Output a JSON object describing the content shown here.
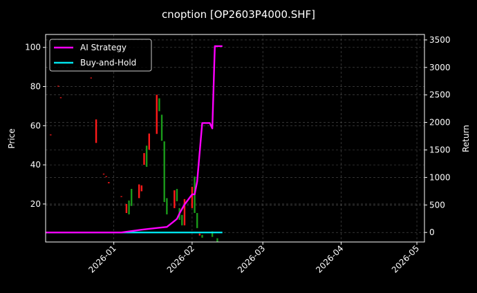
{
  "chart_data": {
    "type": "line",
    "title": "cnoption [OP2603P4000.SHF]",
    "ylabel": "Price",
    "y2label": "Return",
    "xlim": [
      "2025-12-05",
      "2026-05-04"
    ],
    "ylim": [
      0.6,
      106.6
    ],
    "y2lim": [
      -173,
      3599
    ],
    "grid": true,
    "legend_placement": "top-left",
    "x_ticks": [
      "2026-01",
      "2026-02",
      "2026-03",
      "2026-04",
      "2026-05"
    ],
    "x_tick_dates": [
      "2026-01-01",
      "2026-02-01",
      "2026-03-01",
      "2026-04-01",
      "2026-05-01"
    ],
    "y_ticks": [
      20,
      40,
      60,
      80,
      100
    ],
    "y2_ticks": [
      0,
      500,
      1000,
      1500,
      2000,
      2500,
      3000,
      3500
    ],
    "colors": {
      "up": "#ff1a1a",
      "down": "#1a9a1a",
      "ai": "#ff00ff",
      "bh": "#00e5ee",
      "background": "#000000",
      "grid": "#555555"
    },
    "candles": [
      {
        "date": "2025-12-07",
        "open": 55.3,
        "close": 55.5
      },
      {
        "date": "2025-12-10",
        "open": 80.2,
        "close": 80.4
      },
      {
        "date": "2025-12-11",
        "open": 74.3,
        "close": 74.5
      },
      {
        "date": "2025-12-23",
        "open": 84.4,
        "close": 84.6
      },
      {
        "date": "2025-12-25",
        "open": 51.2,
        "close": 63.2
      },
      {
        "date": "2025-12-28",
        "open": 35.2,
        "close": 35.5
      },
      {
        "date": "2025-12-29",
        "open": 33.8,
        "close": 34.2
      },
      {
        "date": "2025-12-30",
        "open": 30.6,
        "close": 31.2
      },
      {
        "date": "2026-01-04",
        "open": 23.8,
        "close": 24.0
      },
      {
        "date": "2026-01-06",
        "open": 15.4,
        "close": 20.0
      },
      {
        "date": "2026-01-07",
        "open": 21.8,
        "close": 14.7
      },
      {
        "date": "2026-01-08",
        "open": 27.7,
        "close": 19.0
      },
      {
        "date": "2026-01-11",
        "open": 23.0,
        "close": 30.0
      },
      {
        "date": "2026-01-12",
        "open": 26.5,
        "close": 29.5
      },
      {
        "date": "2026-01-13",
        "open": 40.0,
        "close": 46.0
      },
      {
        "date": "2026-01-14",
        "open": 49.8,
        "close": 39.0
      },
      {
        "date": "2026-01-15",
        "open": 47.7,
        "close": 56.0
      },
      {
        "date": "2026-01-18",
        "open": 55.8,
        "close": 75.8
      },
      {
        "date": "2026-01-19",
        "open": 74.0,
        "close": 67.4
      },
      {
        "date": "2026-01-20",
        "open": 65.6,
        "close": 52.3
      },
      {
        "date": "2026-01-21",
        "open": 52.0,
        "close": 21.0
      },
      {
        "date": "2026-01-22",
        "open": 23.0,
        "close": 14.7
      },
      {
        "date": "2026-01-25",
        "open": 17.9,
        "close": 27.0
      },
      {
        "date": "2026-01-26",
        "open": 27.7,
        "close": 21.4
      },
      {
        "date": "2026-01-27",
        "open": 17.9,
        "close": 11.9
      },
      {
        "date": "2026-01-28",
        "open": 14.4,
        "close": 9.1
      },
      {
        "date": "2026-01-29",
        "open": 9.1,
        "close": 22.5
      },
      {
        "date": "2026-02-01",
        "open": 17.9,
        "close": 28.8
      },
      {
        "date": "2026-02-02",
        "open": 34.0,
        "close": 15.4
      },
      {
        "date": "2026-02-03",
        "open": 15.4,
        "close": 7.7
      },
      {
        "date": "2026-02-04",
        "open": 3.9,
        "close": 4.9
      },
      {
        "date": "2026-02-05",
        "open": 4.2,
        "close": 2.8
      },
      {
        "date": "2026-02-09",
        "open": 6.0,
        "close": 3.2
      },
      {
        "date": "2026-02-11",
        "open": 2.5,
        "close": 0.7
      }
    ],
    "series": [
      {
        "name": "AI Strategy",
        "axis": "right",
        "x": [
          "2025-12-05",
          "2026-01-04",
          "2026-01-12",
          "2026-01-19",
          "2026-01-22",
          "2026-01-24",
          "2026-01-26",
          "2026-01-27",
          "2026-01-29",
          "2026-02-01",
          "2026-02-02",
          "2026-02-03",
          "2026-02-04",
          "2026-02-05",
          "2026-02-08",
          "2026-02-09",
          "2026-02-10",
          "2026-02-13"
        ],
        "y": [
          0,
          0,
          50,
          86,
          100,
          173,
          247,
          346,
          507,
          692,
          692,
          927,
          1459,
          1990,
          1990,
          1891,
          3387,
          3387
        ]
      },
      {
        "name": "Buy-and-Hold",
        "axis": "right",
        "x": [
          "2025-12-05",
          "2026-02-13"
        ],
        "y": [
          0,
          0
        ]
      }
    ]
  }
}
